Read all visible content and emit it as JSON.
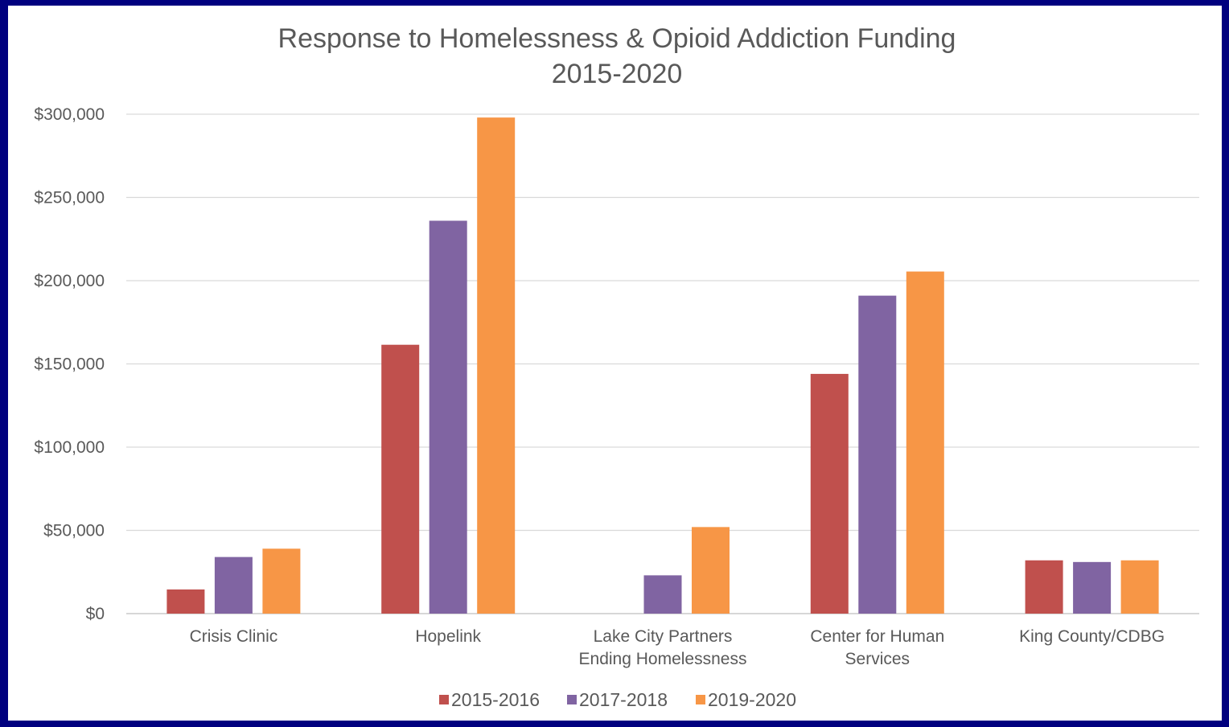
{
  "chart_data": {
    "type": "bar",
    "title_lines": [
      "Response to Homelessness & Opioid Addiction Funding",
      "2015-2020"
    ],
    "categories": [
      [
        "Crisis Clinic"
      ],
      [
        "Hopelink"
      ],
      [
        "Lake City Partners",
        "Ending Homelessness"
      ],
      [
        "Center for Human",
        "Services"
      ],
      [
        "King County/CDBG"
      ]
    ],
    "series": [
      {
        "name": "2015-2016",
        "color": "#c0504d",
        "values": [
          14500,
          161500,
          0,
          144000,
          32000
        ]
      },
      {
        "name": "2017-2018",
        "color": "#8064a2",
        "values": [
          34000,
          236000,
          23000,
          191000,
          31000
        ]
      },
      {
        "name": "2019-2020",
        "color": "#f79646",
        "values": [
          39000,
          298000,
          52000,
          205500,
          32000
        ]
      }
    ],
    "ylim": [
      0,
      300000
    ],
    "yticks": [
      0,
      50000,
      100000,
      150000,
      200000,
      250000,
      300000
    ],
    "ytick_labels": [
      "$0",
      "$50,000",
      "$100,000",
      "$150,000",
      "$200,000",
      "$250,000",
      "$300,000"
    ],
    "grid": true,
    "legend_position": "bottom"
  }
}
